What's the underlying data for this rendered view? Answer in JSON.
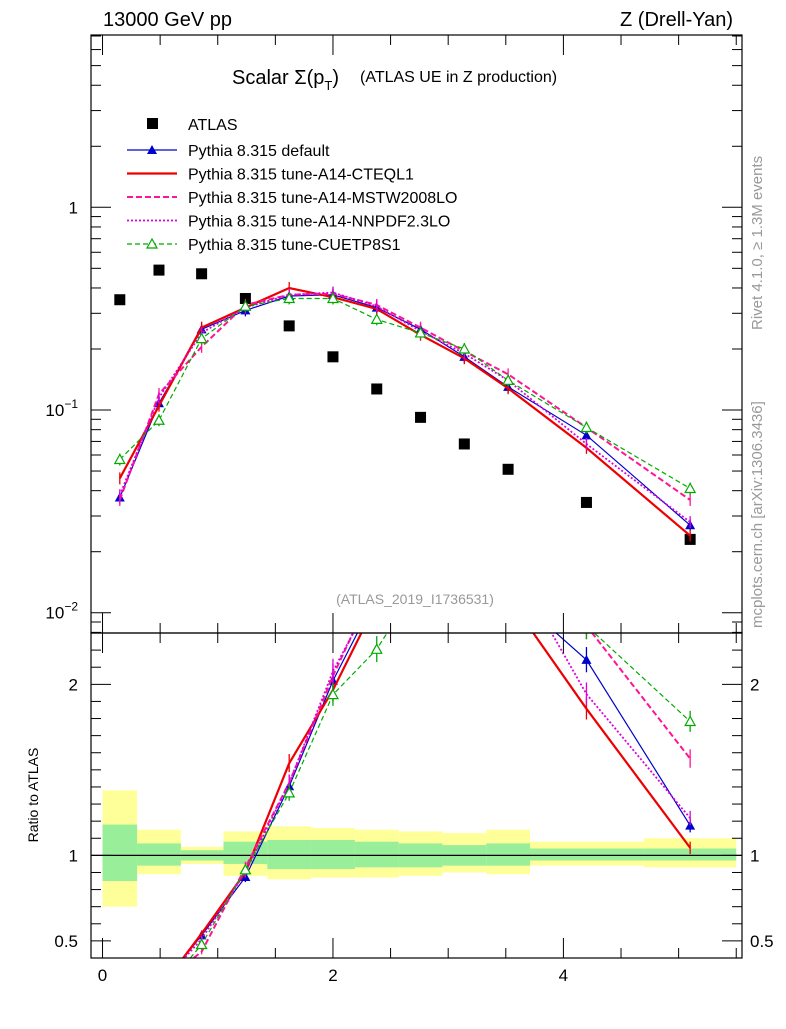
{
  "header": {
    "left": "13000 GeV pp",
    "right": "Z (Drell-Yan)"
  },
  "side": {
    "rivet": "Rivet 4.1.0, ≥ 1.3M events",
    "mcplots": "mcplots.cern.ch [arXiv:1306.3436]"
  },
  "chart_data": {
    "type": "line",
    "title_main": "Scalar Σ(p",
    "title_sub": "T",
    "title_close": ")",
    "title_rest": "(ATLAS UE in Z production)",
    "analysis_ref": "(ATLAS_2019_I1736531)",
    "ratio_ylabel": "Ratio to ATLAS",
    "xlim": [
      -0.1,
      5.55
    ],
    "ylim_main_log10": [
      -2.1,
      0.85
    ],
    "ylim_ratio": [
      0.4,
      2.3
    ],
    "x_ticks": [
      {
        "value": 0,
        "label": "0"
      },
      {
        "value": 2,
        "label": "2"
      },
      {
        "value": 4,
        "label": "4"
      }
    ],
    "main_ticks": [
      {
        "value": 1,
        "label": "1"
      },
      {
        "value": 0.1,
        "label": "10",
        "exp": "−1"
      },
      {
        "value": 0.01,
        "label": "10",
        "exp": "−2"
      }
    ],
    "ratio_ticks": [
      {
        "value": 0.5,
        "label": "0.5"
      },
      {
        "value": 1,
        "label": "1"
      },
      {
        "value": 2,
        "label": "2"
      }
    ],
    "x": [
      0.15,
      0.49,
      0.86,
      1.24,
      1.62,
      2.0,
      2.38,
      2.76,
      3.14,
      3.52,
      4.2,
      5.1
    ],
    "bins": [
      [
        0.0,
        0.3
      ],
      [
        0.3,
        0.68
      ],
      [
        0.68,
        1.05
      ],
      [
        1.05,
        1.43
      ],
      [
        1.43,
        1.81
      ],
      [
        1.81,
        2.19
      ],
      [
        2.19,
        2.57
      ],
      [
        2.57,
        2.95
      ],
      [
        2.95,
        3.33
      ],
      [
        3.33,
        3.71
      ],
      [
        3.71,
        4.7
      ],
      [
        4.7,
        5.5
      ]
    ],
    "data": {
      "name": "ATLAS",
      "values": [
        0.35,
        0.49,
        0.47,
        0.355,
        0.26,
        0.183,
        0.127,
        0.092,
        0.068,
        0.051,
        0.035,
        0.023
      ],
      "band_inner": [
        [
          0.85,
          1.18
        ],
        [
          0.94,
          1.07
        ],
        [
          0.97,
          1.03
        ],
        [
          0.95,
          1.08
        ],
        [
          0.92,
          1.09
        ],
        [
          0.92,
          1.09
        ],
        [
          0.93,
          1.08
        ],
        [
          0.93,
          1.07
        ],
        [
          0.94,
          1.06
        ],
        [
          0.94,
          1.07
        ],
        [
          0.97,
          1.04
        ],
        [
          0.97,
          1.04
        ]
      ],
      "band_outer": [
        [
          0.7,
          1.38
        ],
        [
          0.89,
          1.15
        ],
        [
          0.95,
          1.05
        ],
        [
          0.88,
          1.14
        ],
        [
          0.86,
          1.17
        ],
        [
          0.87,
          1.16
        ],
        [
          0.87,
          1.15
        ],
        [
          0.88,
          1.14
        ],
        [
          0.9,
          1.13
        ],
        [
          0.89,
          1.15
        ],
        [
          0.94,
          1.08
        ],
        [
          0.93,
          1.1
        ]
      ]
    },
    "series": [
      {
        "name": "Pythia 8.315 default",
        "color": "#0000cc",
        "dash": "",
        "width": 1.2,
        "marker": "triangle-filled",
        "values": [
          0.037,
          0.108,
          0.25,
          0.31,
          0.365,
          0.37,
          0.32,
          0.25,
          0.183,
          0.13,
          0.075,
          0.027
        ]
      },
      {
        "name": "Pythia 8.315 tune-A14-CTEQL1",
        "color": "#ee0000",
        "dash": "",
        "width": 2.2,
        "marker": "none",
        "values": [
          0.046,
          0.105,
          0.255,
          0.32,
          0.4,
          0.36,
          0.315,
          0.235,
          0.18,
          0.128,
          0.065,
          0.024
        ]
      },
      {
        "name": "Pythia 8.315 tune-A14-MSTW2008LO",
        "color": "#ff1493",
        "dash": "6,3",
        "width": 2.0,
        "marker": "none",
        "values": [
          0.036,
          0.12,
          0.205,
          0.33,
          0.37,
          0.375,
          0.33,
          0.255,
          0.195,
          0.15,
          0.082,
          0.036
        ]
      },
      {
        "name": "Pythia 8.315 tune-A14-NNPDF2.3LO",
        "color": "#dd00dd",
        "dash": "2,2",
        "width": 1.8,
        "marker": "none",
        "values": [
          0.038,
          0.115,
          0.24,
          0.32,
          0.37,
          0.38,
          0.325,
          0.245,
          0.19,
          0.14,
          0.068,
          0.028
        ]
      },
      {
        "name": "Pythia 8.315 tune-CUETP8S1",
        "color": "#00aa00",
        "dash": "5,3",
        "width": 1.2,
        "marker": "triangle-open",
        "values": [
          0.057,
          0.089,
          0.225,
          0.325,
          0.355,
          0.355,
          0.28,
          0.24,
          0.2,
          0.14,
          0.082,
          0.041
        ]
      }
    ]
  }
}
